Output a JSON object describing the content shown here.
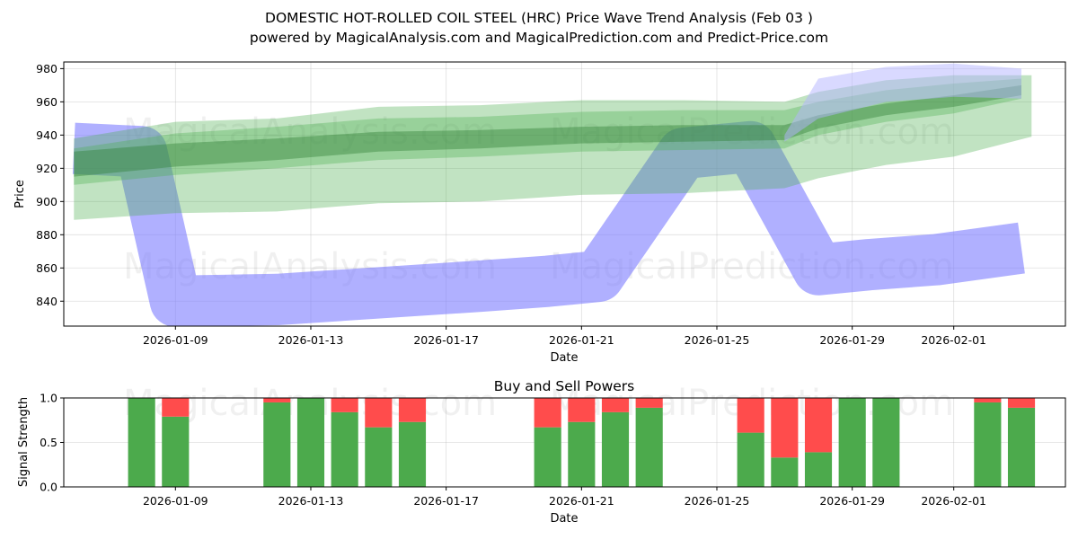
{
  "chart_data": [
    {
      "type": "area",
      "title_line1": "DOMESTIC HOT-ROLLED COIL STEEL (HRC) Price Wave Trend Analysis (Feb 03 )",
      "title_line2": "powered by MagicalAnalysis.com and MagicalPrediction.com and Predict-Price.com",
      "xlabel": "Date",
      "ylabel": "Price",
      "ylim": [
        825,
        984
      ],
      "xlim_days": [
        -3.3,
        26.3
      ],
      "x_ticks": [
        {
          "day": 0,
          "label": "2026-01-09"
        },
        {
          "day": 4,
          "label": "2026-01-13"
        },
        {
          "day": 8,
          "label": "2026-01-17"
        },
        {
          "day": 12,
          "label": "2026-01-21"
        },
        {
          "day": 16,
          "label": "2026-01-25"
        },
        {
          "day": 20,
          "label": "2026-01-29"
        },
        {
          "day": 23,
          "label": "2026-02-01"
        }
      ],
      "y_ticks": [
        840,
        860,
        880,
        900,
        920,
        940,
        960,
        980
      ],
      "watermarks": [
        "MagicalAnalysis.com",
        "MagicalPrediction.com"
      ],
      "series": [
        {
          "name": "blue-wave",
          "color": "#7b7bff",
          "opacity": 0.6,
          "days": [
            -3,
            -1,
            0,
            3,
            6,
            9,
            11,
            12.5,
            15,
            17,
            19,
            20.5,
            22.5,
            25
          ],
          "values": [
            932,
            930,
            840,
            841,
            845,
            849,
            852,
            855,
            929,
            933,
            859,
            862,
            865,
            872
          ],
          "half_width": 13
        },
        {
          "name": "green-band-wide",
          "color": "#4caf50",
          "opacity": 0.35,
          "days": [
            -3,
            0,
            3,
            6,
            9,
            12,
            15,
            18,
            19,
            21,
            23,
            25.3
          ],
          "upper": [
            938,
            948,
            950,
            957,
            958,
            961,
            961,
            960,
            966,
            973,
            976,
            976
          ],
          "lower": [
            889,
            893,
            894,
            899,
            900,
            904,
            905,
            908,
            914,
            922,
            927,
            939
          ]
        },
        {
          "name": "green-band-mid",
          "color": "#4caf50",
          "opacity": 0.35,
          "days": [
            -3,
            0,
            3,
            6,
            9,
            12,
            15,
            18,
            19,
            21,
            23,
            25
          ],
          "upper": [
            932,
            941,
            945,
            950,
            951,
            954,
            955,
            955,
            960,
            967,
            971,
            974
          ],
          "lower": [
            910,
            916,
            920,
            925,
            927,
            930,
            931,
            932,
            940,
            948,
            953,
            962
          ]
        },
        {
          "name": "green-band-core",
          "color": "#2e7d32",
          "opacity": 0.4,
          "days": [
            -3,
            0,
            3,
            6,
            9,
            12,
            15,
            18,
            19,
            21,
            23,
            25
          ],
          "upper": [
            930,
            935,
            938,
            942,
            943,
            945,
            946,
            946,
            952,
            959,
            964,
            970
          ],
          "lower": [
            915,
            921,
            925,
            930,
            932,
            935,
            936,
            937,
            944,
            952,
            957,
            964
          ]
        },
        {
          "name": "blue-upper-haze",
          "color": "#b3b3ff",
          "opacity": 0.5,
          "days": [
            18,
            19,
            21,
            23,
            25
          ],
          "upper": [
            940,
            974,
            981,
            983,
            980
          ],
          "lower": [
            936,
            950,
            960,
            963,
            962
          ]
        }
      ]
    },
    {
      "type": "bar",
      "title": "Buy and Sell Powers",
      "xlabel": "Date",
      "ylabel": "Signal Strength",
      "ylim": [
        0,
        1
      ],
      "y_ticks": [
        {
          "value": 0,
          "label": "0.0"
        },
        {
          "value": 0.5,
          "label": "0.5"
        },
        {
          "value": 1,
          "label": "1.0"
        }
      ],
      "x_ticks": [
        {
          "day": 0,
          "label": "2026-01-09"
        },
        {
          "day": 4,
          "label": "2026-01-13"
        },
        {
          "day": 8,
          "label": "2026-01-17"
        },
        {
          "day": 12,
          "label": "2026-01-21"
        },
        {
          "day": 16,
          "label": "2026-01-25"
        },
        {
          "day": 20,
          "label": "2026-01-29"
        },
        {
          "day": 23,
          "label": "2026-02-01"
        }
      ],
      "buy_color": "#4caa4c",
      "sell_color": "#ff4c4c",
      "bars": [
        {
          "day": -1,
          "buy": 1.0
        },
        {
          "day": 0,
          "buy": 0.79
        },
        {
          "day": 3,
          "buy": 0.95
        },
        {
          "day": 4,
          "buy": 1.0
        },
        {
          "day": 5,
          "buy": 0.84
        },
        {
          "day": 6,
          "buy": 0.67
        },
        {
          "day": 7,
          "buy": 0.73
        },
        {
          "day": 11,
          "buy": 0.67
        },
        {
          "day": 12,
          "buy": 0.73
        },
        {
          "day": 13,
          "buy": 0.84
        },
        {
          "day": 14,
          "buy": 0.89
        },
        {
          "day": 17,
          "buy": 0.61
        },
        {
          "day": 18,
          "buy": 0.33
        },
        {
          "day": 19,
          "buy": 0.39
        },
        {
          "day": 20,
          "buy": 1.0
        },
        {
          "day": 21,
          "buy": 1.0
        },
        {
          "day": 24,
          "buy": 0.95
        },
        {
          "day": 25,
          "buy": 0.89
        }
      ]
    }
  ]
}
